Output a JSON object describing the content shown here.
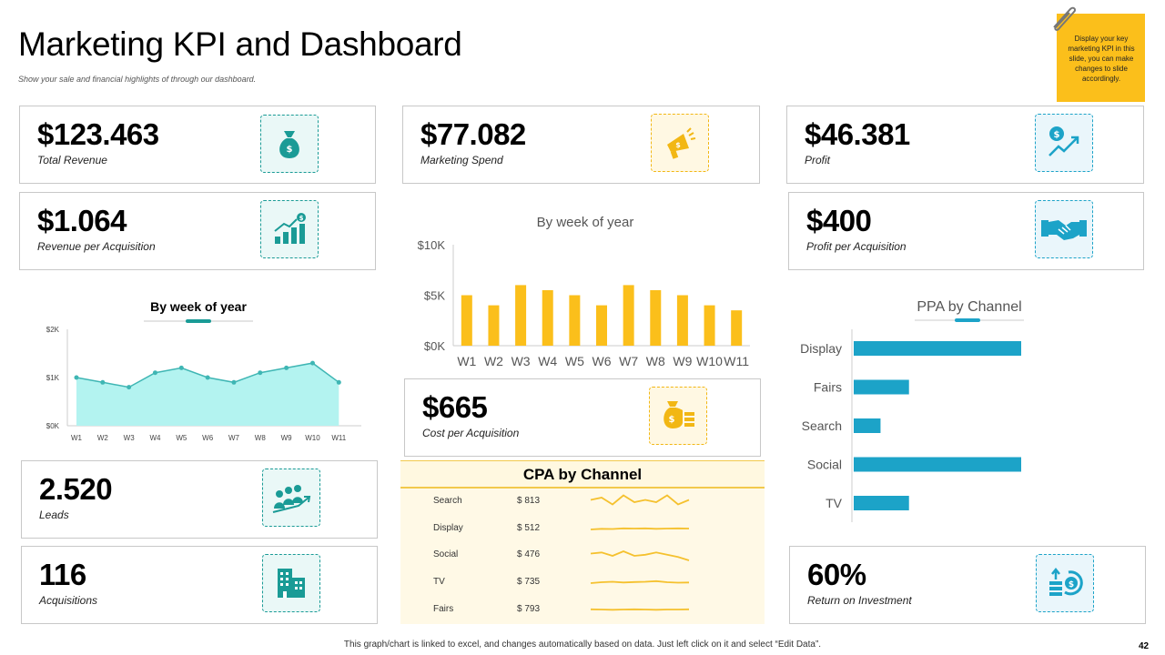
{
  "header": {
    "title": "Marketing KPI and Dashboard",
    "subtitle": "Show your sale and financial highlights of  through our dashboard."
  },
  "note": {
    "text": "Display your key marketing KPI in this slide, you can make changes to slide accordingly."
  },
  "kpis": {
    "total_revenue": {
      "value": "$123.463",
      "label": "Total Revenue",
      "icon": "money-bag-icon"
    },
    "marketing_spend": {
      "value": "$77.082",
      "label": "Marketing Spend",
      "icon": "megaphone-icon"
    },
    "profit": {
      "value": "$46.381",
      "label": "Profit",
      "icon": "profit-growth-icon"
    },
    "revenue_per_acquisition": {
      "value": "$1.064",
      "label": "Revenue per Acquisition",
      "icon": "bar-growth-icon"
    },
    "profit_per_acquisition": {
      "value": "$400",
      "label": "Profit per Acquisition",
      "icon": "handshake-icon"
    },
    "cost_per_acquisition": {
      "value": "$665",
      "label": "Cost per Acquisition",
      "icon": "money-stack-icon"
    },
    "leads": {
      "value": "2.520",
      "label": "Leads",
      "icon": "people-growth-icon"
    },
    "acquisitions": {
      "value": "116",
      "label": "Acquisitions",
      "icon": "buildings-icon"
    },
    "roi": {
      "value": "60%",
      "label": "Return on Investment",
      "icon": "coin-return-icon"
    }
  },
  "colors": {
    "teal": "#1a9b96",
    "area_fill": "#b3f3f0",
    "area_line": "#3fb6b4",
    "bar_yellow": "#fbbf1b",
    "bar_blue": "#1ca3c8",
    "spark_yellow": "#f5c12e"
  },
  "chart_data": [
    {
      "id": "area",
      "type": "area",
      "title": "By week of year",
      "categories": [
        "W1",
        "W2",
        "W3",
        "W4",
        "W5",
        "W6",
        "W7",
        "W8",
        "W9",
        "W10",
        "W11"
      ],
      "values": [
        1000,
        900,
        800,
        1100,
        1200,
        1000,
        900,
        1100,
        1200,
        1300,
        900
      ],
      "tick_labels": [
        "$0K",
        "$1K",
        "$2K"
      ],
      "ylim": [
        0,
        2000
      ]
    },
    {
      "id": "weekly-bar",
      "type": "bar",
      "title": "By week of year",
      "categories": [
        "W1",
        "W2",
        "W3",
        "W4",
        "W5",
        "W6",
        "W7",
        "W8",
        "W9",
        "W10",
        "W11"
      ],
      "values": [
        5000,
        4000,
        6000,
        5500,
        5000,
        4000,
        6000,
        5500,
        5000,
        4000,
        3500
      ],
      "tick_labels": [
        "$0K",
        "$5K",
        "$10K"
      ],
      "ylim": [
        0,
        10000
      ]
    },
    {
      "id": "ppa",
      "type": "bar",
      "orientation": "horizontal",
      "title": "PPA by Channel",
      "categories": [
        "Display",
        "Fairs",
        "Search",
        "Social",
        "TV"
      ],
      "values": [
        10,
        3.3,
        1.6,
        10,
        3.3
      ],
      "xlim": [
        0,
        10
      ]
    },
    {
      "id": "cpa",
      "type": "table",
      "title": "CPA by Channel",
      "rows": [
        {
          "channel": "Search",
          "value": "$ 813",
          "trend": [
            5,
            6,
            3,
            7,
            4,
            5,
            4,
            7,
            3,
            5
          ]
        },
        {
          "channel": "Display",
          "value": "$ 512",
          "trend": [
            4,
            4.3,
            4.2,
            4.5,
            4.4,
            4.5,
            4.3,
            4.4,
            4.5,
            4.4
          ]
        },
        {
          "channel": "Social",
          "value": "$ 476",
          "trend": [
            5,
            5.5,
            4,
            6,
            4,
            4.5,
            5.5,
            4.5,
            3.5,
            2
          ]
        },
        {
          "channel": "TV",
          "value": "$ 735",
          "trend": [
            4,
            4.4,
            4.6,
            4.3,
            4.5,
            4.6,
            4.9,
            4.4,
            4.2,
            4.3
          ]
        },
        {
          "channel": "Fairs",
          "value": "$ 793",
          "trend": [
            4.5,
            4.4,
            4.3,
            4.4,
            4.5,
            4.4,
            4.3,
            4.4,
            4.4,
            4.5
          ]
        }
      ]
    }
  ],
  "footer": {
    "text": "This graph/chart is linked to excel, and changes automatically  based on data. Just left click on it and select “Edit Data”.",
    "page": "42"
  }
}
